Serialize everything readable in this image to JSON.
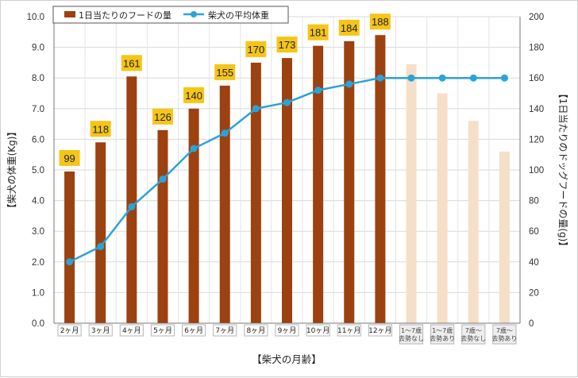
{
  "chart_data": {
    "type": "bar",
    "categories": [
      "2ヶ月",
      "3ヶ月",
      "4ヶ月",
      "5ヶ月",
      "6ヶ月",
      "7ヶ月",
      "8ヶ月",
      "9ヶ月",
      "10ヶ月",
      "11ヶ月",
      "12ヶ月",
      "1〜7歳 去勢なし",
      "1〜7歳 去勢あり",
      "7歳〜 去勢なし",
      "7歳〜 去勢あり"
    ],
    "series": [
      {
        "name": "1日当たりのフードの量",
        "type": "bar",
        "axis": "right",
        "values": [
          99,
          118,
          161,
          126,
          140,
          155,
          170,
          173,
          181,
          184,
          188,
          169,
          150,
          132,
          112
        ],
        "data_labels": [
          "99",
          "118",
          "161",
          "126",
          "140",
          "155",
          "170",
          "173",
          "181",
          "184",
          "188",
          null,
          null,
          null,
          null
        ],
        "colors": [
          "#9c4110",
          "#9c4110",
          "#9c4110",
          "#9c4110",
          "#9c4110",
          "#9c4110",
          "#9c4110",
          "#9c4110",
          "#9c4110",
          "#9c4110",
          "#9c4110",
          "#f5dfc8",
          "#f5dfc8",
          "#f5dfc8",
          "#f5dfc8"
        ]
      },
      {
        "name": "柴犬の平均体重",
        "type": "line",
        "axis": "left",
        "values": [
          2.0,
          2.5,
          3.8,
          4.7,
          5.7,
          6.2,
          7.0,
          7.2,
          7.6,
          7.8,
          8.0,
          8.0,
          8.0,
          8.0,
          8.0
        ],
        "color": "#2aa3d8"
      }
    ],
    "ylabel": "【柴犬の体重(Kg)】",
    "y2label": "【1日当たりのドッグフードの量(g)】",
    "xlabel": "【柴犬の月齢】",
    "ylim": [
      0,
      10
    ],
    "y2lim": [
      0,
      200
    ],
    "yticks": [
      "0.0",
      "1.0",
      "2.0",
      "3.0",
      "4.0",
      "5.0",
      "6.0",
      "7.0",
      "8.0",
      "9.0",
      "10.0"
    ],
    "y2ticks": [
      "0",
      "20",
      "40",
      "60",
      "80",
      "100",
      "120",
      "140",
      "160",
      "180",
      "200"
    ],
    "grid": true,
    "legend": "top-left",
    "label_bg_color": "#f5c518"
  }
}
